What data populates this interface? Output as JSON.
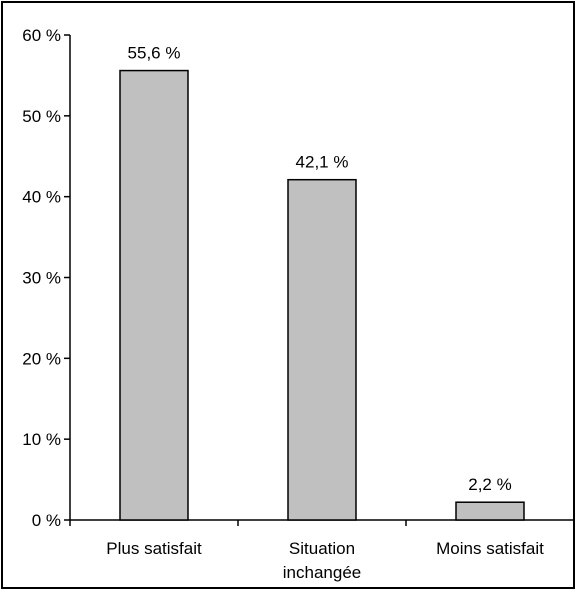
{
  "chart_data": {
    "type": "bar",
    "categories": [
      "Plus satisfait",
      "Situation inchangée",
      "Moins satisfait"
    ],
    "category_lines": [
      [
        "Plus satisfait"
      ],
      [
        "Situation",
        "inchangée"
      ],
      [
        "Moins satisfait"
      ]
    ],
    "values": [
      55.6,
      42.1,
      2.2
    ],
    "data_labels": [
      "55,6 %",
      "42,1 %",
      "2,2 %"
    ],
    "y_ticks": [
      0,
      10,
      20,
      30,
      40,
      50,
      60
    ],
    "y_tick_labels": [
      "0 %",
      "10 %",
      "20 %",
      "30 %",
      "40 %",
      "50 %",
      "60 %"
    ],
    "ylim": [
      0,
      60
    ],
    "title": "",
    "xlabel": "",
    "ylabel": "",
    "grid": false,
    "legend": "none",
    "colors": {
      "bar_fill": "#c0c0c0",
      "bar_stroke": "#000000",
      "axis": "#000000",
      "text": "#000000"
    }
  }
}
